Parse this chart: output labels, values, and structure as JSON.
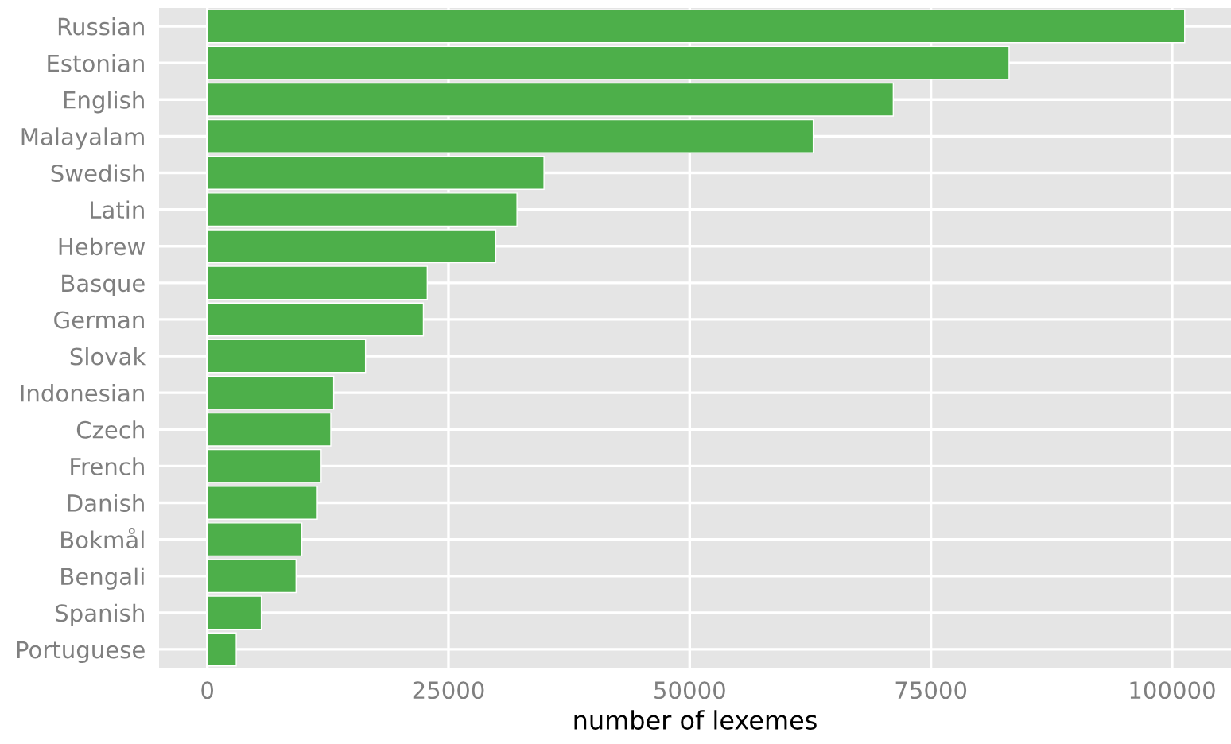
{
  "chart_data": {
    "type": "bar",
    "orientation": "horizontal",
    "xlabel": "number of lexemes",
    "categories": [
      "Russian",
      "Estonian",
      "English",
      "Malayalam",
      "Swedish",
      "Latin",
      "Hebrew",
      "Basque",
      "German",
      "Slovak",
      "Indonesian",
      "Czech",
      "French",
      "Danish",
      "Bokmål",
      "Bengali",
      "Spanish",
      "Portuguese"
    ],
    "values": [
      101300,
      83100,
      71100,
      62800,
      34900,
      32100,
      29900,
      22800,
      22400,
      16400,
      13100,
      12800,
      11800,
      11400,
      9800,
      9200,
      5600,
      3000
    ],
    "color": "#4daf4a",
    "xlim": [
      -5000,
      106100
    ],
    "xticks": [
      0,
      25000,
      50000,
      75000,
      100000
    ],
    "grid": true
  }
}
